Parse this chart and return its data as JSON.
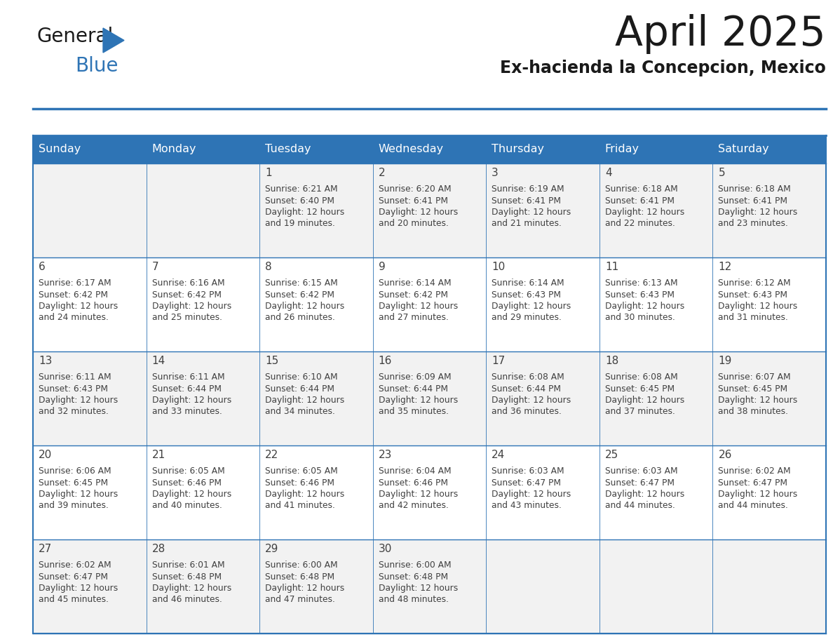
{
  "title": "April 2025",
  "subtitle": "Ex-hacienda la Concepcion, Mexico",
  "days_of_week": [
    "Sunday",
    "Monday",
    "Tuesday",
    "Wednesday",
    "Thursday",
    "Friday",
    "Saturday"
  ],
  "header_bg": "#2e74b5",
  "header_text": "#ffffff",
  "cell_bg_odd": "#f2f2f2",
  "cell_bg_even": "#ffffff",
  "grid_line_color": "#2e74b5",
  "text_color": "#404040",
  "title_color": "#1a1a1a",
  "subtitle_color": "#1a1a1a",
  "calendar_data": [
    [
      {
        "day": "",
        "sunrise": "",
        "sunset": "",
        "daylight": ""
      },
      {
        "day": "",
        "sunrise": "",
        "sunset": "",
        "daylight": ""
      },
      {
        "day": "1",
        "sunrise": "6:21 AM",
        "sunset": "6:40 PM",
        "daylight": "19 minutes."
      },
      {
        "day": "2",
        "sunrise": "6:20 AM",
        "sunset": "6:41 PM",
        "daylight": "20 minutes."
      },
      {
        "day": "3",
        "sunrise": "6:19 AM",
        "sunset": "6:41 PM",
        "daylight": "21 minutes."
      },
      {
        "day": "4",
        "sunrise": "6:18 AM",
        "sunset": "6:41 PM",
        "daylight": "22 minutes."
      },
      {
        "day": "5",
        "sunrise": "6:18 AM",
        "sunset": "6:41 PM",
        "daylight": "23 minutes."
      }
    ],
    [
      {
        "day": "6",
        "sunrise": "6:17 AM",
        "sunset": "6:42 PM",
        "daylight": "24 minutes."
      },
      {
        "day": "7",
        "sunrise": "6:16 AM",
        "sunset": "6:42 PM",
        "daylight": "25 minutes."
      },
      {
        "day": "8",
        "sunrise": "6:15 AM",
        "sunset": "6:42 PM",
        "daylight": "26 minutes."
      },
      {
        "day": "9",
        "sunrise": "6:14 AM",
        "sunset": "6:42 PM",
        "daylight": "27 minutes."
      },
      {
        "day": "10",
        "sunrise": "6:14 AM",
        "sunset": "6:43 PM",
        "daylight": "29 minutes."
      },
      {
        "day": "11",
        "sunrise": "6:13 AM",
        "sunset": "6:43 PM",
        "daylight": "30 minutes."
      },
      {
        "day": "12",
        "sunrise": "6:12 AM",
        "sunset": "6:43 PM",
        "daylight": "31 minutes."
      }
    ],
    [
      {
        "day": "13",
        "sunrise": "6:11 AM",
        "sunset": "6:43 PM",
        "daylight": "32 minutes."
      },
      {
        "day": "14",
        "sunrise": "6:11 AM",
        "sunset": "6:44 PM",
        "daylight": "33 minutes."
      },
      {
        "day": "15",
        "sunrise": "6:10 AM",
        "sunset": "6:44 PM",
        "daylight": "34 minutes."
      },
      {
        "day": "16",
        "sunrise": "6:09 AM",
        "sunset": "6:44 PM",
        "daylight": "35 minutes."
      },
      {
        "day": "17",
        "sunrise": "6:08 AM",
        "sunset": "6:44 PM",
        "daylight": "36 minutes."
      },
      {
        "day": "18",
        "sunrise": "6:08 AM",
        "sunset": "6:45 PM",
        "daylight": "37 minutes."
      },
      {
        "day": "19",
        "sunrise": "6:07 AM",
        "sunset": "6:45 PM",
        "daylight": "38 minutes."
      }
    ],
    [
      {
        "day": "20",
        "sunrise": "6:06 AM",
        "sunset": "6:45 PM",
        "daylight": "39 minutes."
      },
      {
        "day": "21",
        "sunrise": "6:05 AM",
        "sunset": "6:46 PM",
        "daylight": "40 minutes."
      },
      {
        "day": "22",
        "sunrise": "6:05 AM",
        "sunset": "6:46 PM",
        "daylight": "41 minutes."
      },
      {
        "day": "23",
        "sunrise": "6:04 AM",
        "sunset": "6:46 PM",
        "daylight": "42 minutes."
      },
      {
        "day": "24",
        "sunrise": "6:03 AM",
        "sunset": "6:47 PM",
        "daylight": "43 minutes."
      },
      {
        "day": "25",
        "sunrise": "6:03 AM",
        "sunset": "6:47 PM",
        "daylight": "44 minutes."
      },
      {
        "day": "26",
        "sunrise": "6:02 AM",
        "sunset": "6:47 PM",
        "daylight": "44 minutes."
      }
    ],
    [
      {
        "day": "27",
        "sunrise": "6:02 AM",
        "sunset": "6:47 PM",
        "daylight": "45 minutes."
      },
      {
        "day": "28",
        "sunrise": "6:01 AM",
        "sunset": "6:48 PM",
        "daylight": "46 minutes."
      },
      {
        "day": "29",
        "sunrise": "6:00 AM",
        "sunset": "6:48 PM",
        "daylight": "47 minutes."
      },
      {
        "day": "30",
        "sunrise": "6:00 AM",
        "sunset": "6:48 PM",
        "daylight": "48 minutes."
      },
      {
        "day": "",
        "sunrise": "",
        "sunset": "",
        "daylight": ""
      },
      {
        "day": "",
        "sunrise": "",
        "sunset": "",
        "daylight": ""
      },
      {
        "day": "",
        "sunrise": "",
        "sunset": "",
        "daylight": ""
      }
    ]
  ],
  "logo_color_general": "#1a1a1a",
  "logo_color_blue": "#2e74b5",
  "logo_triangle_color": "#2e74b5"
}
